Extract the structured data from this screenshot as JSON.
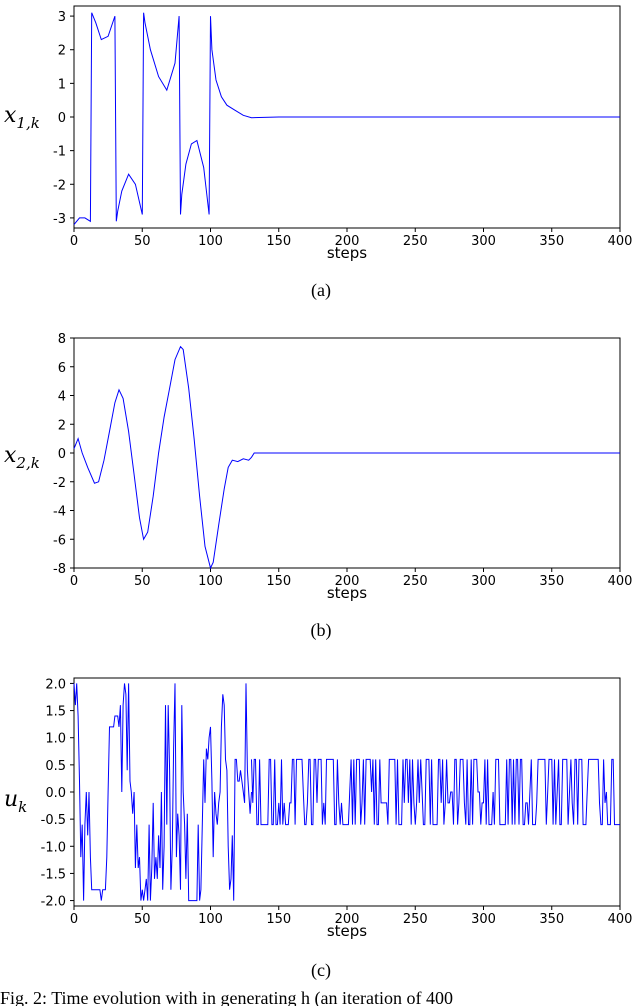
{
  "chart_data": [
    {
      "type": "line",
      "id": "a",
      "caption": "(a)",
      "xlabel": "steps",
      "ylabel": "x",
      "ylabel_sub": "1,k",
      "xlim": [
        0,
        400
      ],
      "ylim": [
        -3.3,
        3.3
      ],
      "xticks": [
        0,
        50,
        100,
        150,
        200,
        250,
        300,
        350,
        400
      ],
      "yticks": [
        3,
        2,
        1,
        0,
        -1,
        -2,
        -3
      ],
      "ytick_labels": [
        "3",
        "2",
        "1",
        "0",
        "-1",
        "-2",
        "-3"
      ],
      "line_color": "#0000ff",
      "series": [
        {
          "x": [
            0,
            4,
            8,
            12,
            13,
            16,
            20,
            25,
            30,
            31,
            32,
            35,
            40,
            45,
            50,
            51,
            52,
            56,
            62,
            68,
            74,
            77,
            78,
            79,
            82,
            86,
            90,
            95,
            99,
            100,
            101,
            104,
            108,
            112,
            118,
            124,
            130,
            150,
            200,
            250,
            300,
            350,
            400
          ],
          "y": [
            -3.2,
            -3.0,
            -3.0,
            -3.1,
            3.1,
            2.8,
            2.3,
            2.4,
            3.0,
            -3.1,
            -2.8,
            -2.2,
            -1.7,
            -2.0,
            -2.9,
            3.1,
            2.8,
            2.0,
            1.2,
            0.8,
            1.6,
            3.0,
            -2.9,
            -2.3,
            -1.4,
            -0.8,
            -0.7,
            -1.5,
            -2.9,
            3.0,
            2.0,
            1.1,
            0.6,
            0.35,
            0.2,
            0.05,
            -0.02,
            0.0,
            0.0,
            0.0,
            0.0,
            0.0,
            0.0
          ]
        }
      ]
    },
    {
      "type": "line",
      "id": "b",
      "caption": "(b)",
      "xlabel": "steps",
      "ylabel": "x",
      "ylabel_sub": "2,k",
      "xlim": [
        0,
        400
      ],
      "ylim": [
        -8,
        8
      ],
      "xticks": [
        0,
        50,
        100,
        150,
        200,
        250,
        300,
        350,
        400
      ],
      "yticks": [
        8,
        6,
        4,
        2,
        0,
        -2,
        -4,
        -6,
        -8
      ],
      "ytick_labels": [
        "8",
        "6",
        "4",
        "2",
        "0",
        "-2",
        "-4",
        "-6",
        "-8"
      ],
      "line_color": "#0000ff",
      "series": [
        {
          "x": [
            0,
            3,
            6,
            10,
            15,
            18,
            22,
            26,
            30,
            33,
            36,
            40,
            44,
            48,
            51,
            54,
            58,
            62,
            66,
            70,
            74,
            78,
            80,
            84,
            88,
            92,
            96,
            100,
            102,
            106,
            110,
            113,
            116,
            120,
            124,
            128,
            130,
            132,
            140,
            160,
            200,
            250,
            300,
            350,
            400
          ],
          "y": [
            0.3,
            1.0,
            0.0,
            -1.0,
            -2.1,
            -2.0,
            -0.5,
            1.5,
            3.5,
            4.4,
            3.8,
            1.5,
            -1.5,
            -4.5,
            -6.0,
            -5.5,
            -3.0,
            0.0,
            2.5,
            4.5,
            6.5,
            7.4,
            7.2,
            4.5,
            1.0,
            -3.0,
            -6.5,
            -8.0,
            -7.6,
            -5.0,
            -2.5,
            -1.0,
            -0.5,
            -0.6,
            -0.4,
            -0.5,
            -0.3,
            0.0,
            0.0,
            0.0,
            0.0,
            0.0,
            0.0,
            0.0,
            0.0
          ]
        }
      ]
    },
    {
      "type": "line",
      "id": "c",
      "caption": "(c)",
      "xlabel": "steps",
      "ylabel": "u",
      "ylabel_sub": "k",
      "xlim": [
        0,
        400
      ],
      "ylim": [
        -2.1,
        2.1
      ],
      "xticks": [
        0,
        50,
        100,
        150,
        200,
        250,
        300,
        350,
        400
      ],
      "yticks": [
        2.0,
        1.5,
        1.0,
        0.5,
        0.0,
        -0.5,
        -1.0,
        -1.5,
        -2.0
      ],
      "ytick_labels": [
        "2.0",
        "1.5",
        "1.0",
        "0.5",
        "0.0",
        "-0.5",
        "-1.0",
        "-1.5",
        "-2.0"
      ],
      "line_color": "#0000ff",
      "series": [
        {
          "x": [
            0,
            1,
            2,
            3,
            4,
            5,
            6,
            7,
            8,
            9,
            10,
            11,
            12,
            13,
            14,
            15,
            16,
            17,
            18,
            19,
            20,
            21,
            22,
            23,
            24,
            25,
            26,
            27,
            28,
            29,
            30,
            31,
            32,
            33,
            34,
            35,
            36,
            37,
            38,
            39,
            40,
            41,
            42,
            43,
            44,
            45,
            46,
            47,
            48,
            49,
            50,
            51,
            52,
            53,
            54,
            55,
            56,
            57,
            58,
            59,
            60,
            61,
            62,
            63,
            64,
            65,
            66,
            67,
            68,
            69,
            70,
            71,
            72,
            73,
            74,
            75,
            76,
            77,
            78,
            79,
            80,
            81,
            82,
            83,
            84,
            85,
            86,
            87,
            88,
            89,
            90,
            91,
            92,
            93,
            94,
            95,
            96,
            97,
            98,
            99,
            100,
            101,
            102,
            103,
            104,
            105,
            106,
            107,
            108,
            109,
            110,
            111,
            112,
            113,
            114,
            115,
            116,
            117,
            118,
            119,
            120,
            121,
            122,
            123,
            124,
            125,
            126,
            127,
            128,
            129,
            130
          ],
          "y": [
            2.0,
            1.6,
            2.0,
            1.4,
            0.2,
            -1.2,
            -0.6,
            -2.0,
            -0.6,
            0.0,
            -0.8,
            0.0,
            -1.2,
            -1.8,
            -1.8,
            -1.8,
            -1.8,
            -1.8,
            -1.8,
            -1.8,
            -2.0,
            -1.8,
            -1.8,
            -1.8,
            -1.2,
            0.0,
            1.2,
            1.2,
            1.2,
            1.2,
            1.4,
            1.4,
            1.4,
            1.2,
            1.6,
            0.0,
            1.6,
            2.0,
            1.8,
            0.4,
            2.0,
            0.2,
            0.0,
            -0.4,
            0.0,
            -1.4,
            -0.6,
            -1.4,
            -1.2,
            -2.0,
            -1.8,
            -2.0,
            -1.8,
            -1.6,
            -2.0,
            -0.6,
            -2.0,
            -1.4,
            -0.2,
            -1.6,
            -1.2,
            -1.6,
            -0.8,
            -1.4,
            0.0,
            -1.8,
            -1.0,
            1.6,
            -0.6,
            1.6,
            0.4,
            -1.8,
            -1.0,
            0.8,
            2.0,
            -1.2,
            -0.4,
            -0.8,
            -1.8,
            1.6,
            0.0,
            -0.6,
            -1.6,
            -0.4,
            -2.0,
            -2.0,
            -2.0,
            -2.0,
            -2.0,
            -2.0,
            -2.0,
            -0.6,
            -2.0,
            -1.8,
            -0.6,
            0.6,
            -0.2,
            0.8,
            0.6,
            1.0,
            1.2,
            0.2,
            -1.2,
            0.0,
            -0.4,
            -0.6,
            -0.2,
            0.0,
            1.2,
            1.8,
            1.6,
            0.6,
            0.4,
            -1.0,
            -1.8,
            -1.6,
            -0.8,
            -2.0,
            0.6,
            0.6,
            0.2,
            0.2,
            0.4,
            0.2,
            0.0,
            -0.2,
            2.0,
            0.4,
            0.0,
            -0.4,
            0.0
          ]
        },
        {
          "name": "",
          "x_start": 130,
          "x_end": 400,
          "step": 1,
          "amplitude_hi": 0.6,
          "amplitude_lo": -0.6,
          "note_hidden": true
        }
      ]
    }
  ],
  "footer_text": "Fig. 2: Time evolution with in generating h (an iteration of 400"
}
